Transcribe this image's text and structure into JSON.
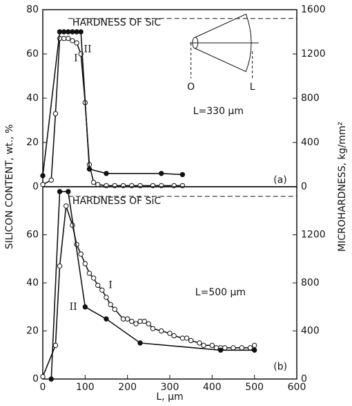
{
  "chart_data": [
    {
      "type": "line",
      "y_label": "SILICON CONTENT, wt., %",
      "y2_label": "MICROHARDNESS, kg/mm²",
      "xlim": [
        0,
        600
      ],
      "ylim": [
        0,
        80
      ],
      "yticks": [
        0,
        20,
        40,
        60,
        80
      ],
      "y2lim": [
        0,
        1600
      ],
      "y2ticks": [
        0,
        400,
        800,
        1200,
        1600
      ],
      "hardness_line": 1520,
      "annotations": [
        "HARDNESS OF SiC",
        "L=330 µm",
        "(a)",
        "O",
        "L"
      ],
      "series": [
        {
          "name": "I",
          "marker": "open",
          "color": "#111111",
          "x": [
            0,
            20,
            30,
            40,
            50,
            60,
            70,
            80,
            90,
            100,
            110,
            120,
            130,
            150,
            170,
            190,
            210,
            230,
            260,
            280,
            310,
            330
          ],
          "values": [
            1,
            3,
            33,
            67,
            67,
            67,
            66,
            65,
            60,
            38,
            10,
            2,
            1,
            0.5,
            0.5,
            0.5,
            0.5,
            0.5,
            0.5,
            0.5,
            0.5,
            0.5
          ]
        },
        {
          "name": "II",
          "marker": "filled",
          "color": "#111111",
          "x": [
            0,
            40,
            50,
            60,
            70,
            80,
            90,
            110,
            150,
            280,
            330
          ],
          "values": [
            5,
            70,
            70,
            70,
            70,
            70,
            70,
            8,
            6,
            6,
            5.5
          ]
        }
      ]
    },
    {
      "type": "line",
      "x_label": "L, µm",
      "xlim": [
        0,
        600
      ],
      "xticks": [
        0,
        100,
        200,
        300,
        400,
        500,
        600
      ],
      "ylim": [
        0,
        80
      ],
      "yticks": [
        0,
        20,
        40,
        60
      ],
      "y2lim": [
        0,
        1600
      ],
      "y2ticks": [
        0,
        400,
        800,
        1200
      ],
      "hardness_line": 1520,
      "annotations": [
        "HARDNESS OF SiC",
        "L=500 µm",
        "(b)"
      ],
      "series": [
        {
          "name": "I",
          "marker": "open",
          "color": "#111111",
          "x": [
            0,
            30,
            40,
            55,
            70,
            80,
            90,
            100,
            110,
            120,
            130,
            140,
            150,
            160,
            170,
            190,
            200,
            210,
            220,
            230,
            240,
            250,
            260,
            280,
            300,
            310,
            330,
            340,
            350,
            370,
            380,
            400,
            410,
            420,
            430,
            450,
            470,
            490,
            500
          ],
          "values": [
            1,
            14,
            47,
            72,
            64,
            56,
            52,
            48,
            44,
            42,
            39,
            37,
            34,
            31,
            29,
            25,
            25,
            24,
            23,
            24,
            24,
            23,
            21,
            20,
            19,
            18,
            17,
            17,
            16,
            15,
            14,
            14,
            13,
            13,
            13,
            13,
            13,
            13,
            14
          ]
        },
        {
          "name": "II",
          "marker": "filled",
          "color": "#111111",
          "x": [
            20,
            40,
            60,
            100,
            150,
            230,
            420,
            500
          ],
          "values": [
            0,
            78,
            78,
            30,
            25,
            15,
            12,
            12
          ]
        }
      ]
    }
  ]
}
